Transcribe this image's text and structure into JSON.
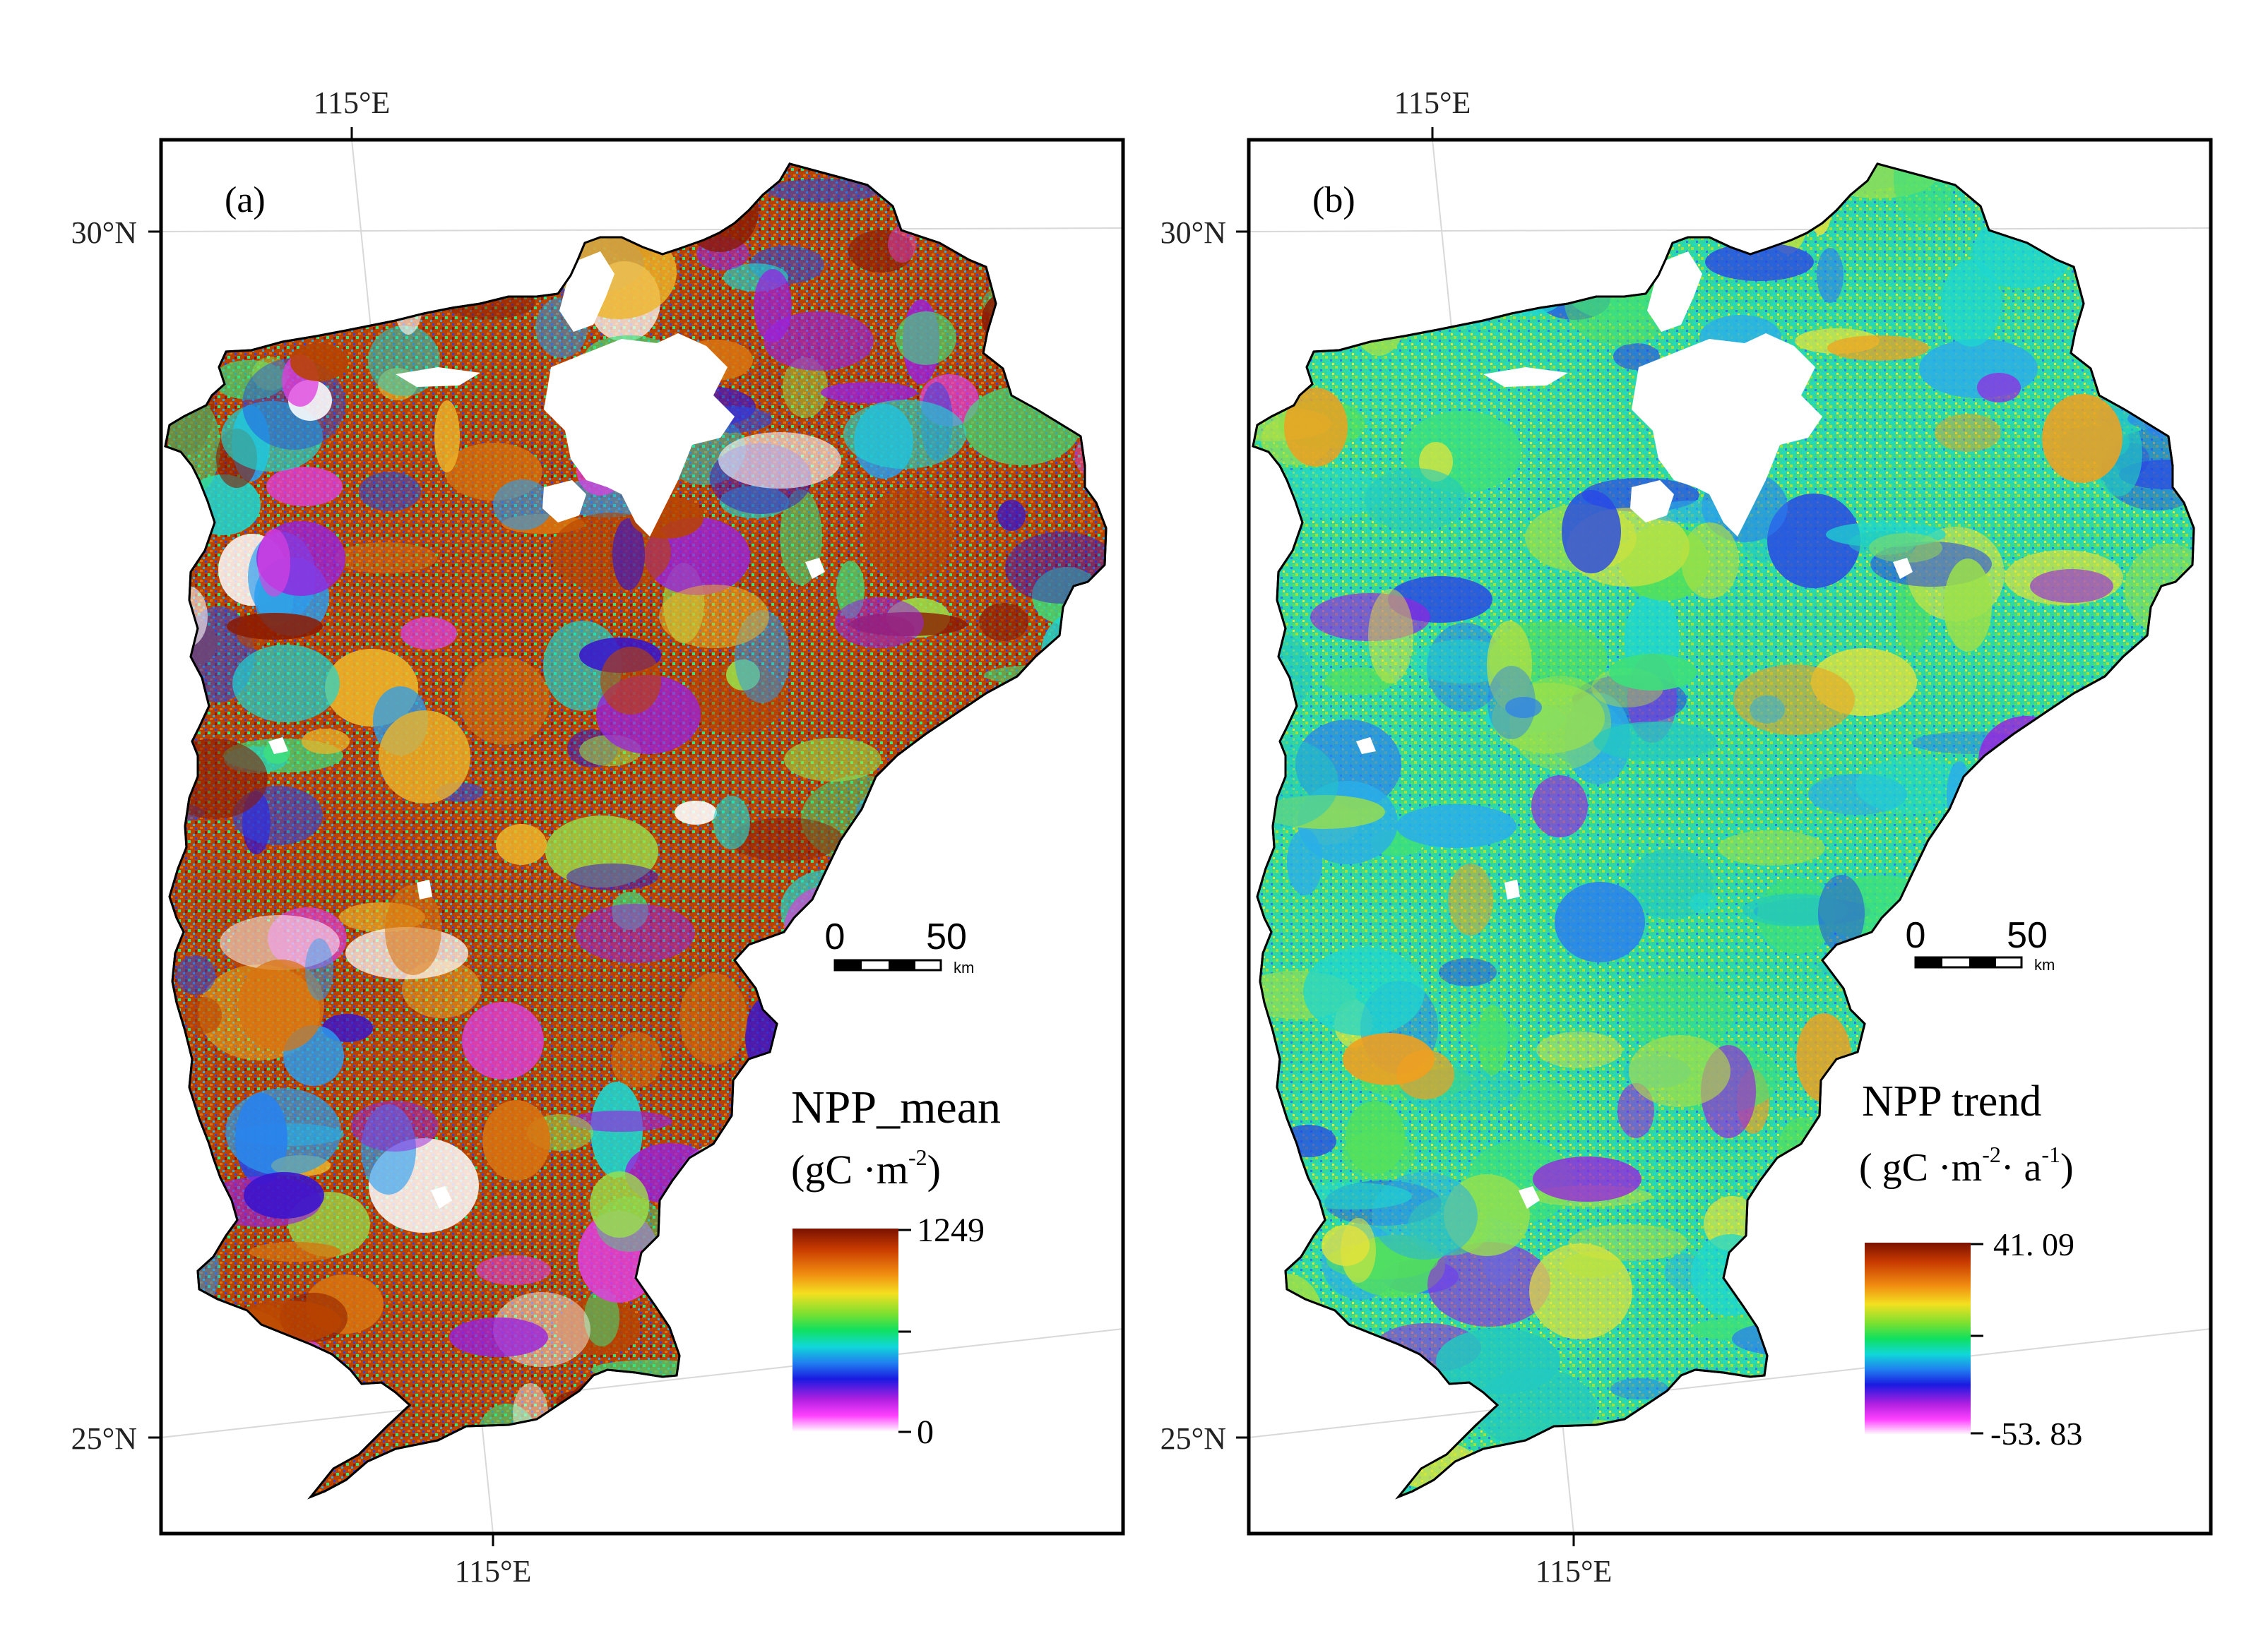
{
  "panels": [
    {
      "id": "a",
      "tag": "(a)",
      "top_lon_label": "115°E",
      "bottom_lon_label": "115°E",
      "lat_label_north": "30°N",
      "lat_label_south": "25°N",
      "scalebar": {
        "zero": "0",
        "fifty": "50",
        "unit": "km"
      },
      "legend": {
        "title": "NPP_mean",
        "unit_prefix": "(gC ·m",
        "unit_sup1": "-2",
        "unit_mid": "",
        "unit_sup2": "",
        "unit_suffix": ")",
        "max_label": "1249",
        "min_label": "0",
        "max": 1249,
        "min": 0
      },
      "colors": [
        "#8b1a00",
        "#b84300",
        "#d9730f",
        "#eeb52a",
        "#9be04a",
        "#3de07c",
        "#1ed7d0",
        "#2a9ef0",
        "#2946e6",
        "#3a14cc",
        "#9a20e0",
        "#e040e0",
        "#ffffff"
      ]
    },
    {
      "id": "b",
      "tag": "(b)",
      "top_lon_label": "115°E",
      "bottom_lon_label": "115°E",
      "lat_label_north": "30°N",
      "lat_label_south": "25°N",
      "scalebar": {
        "zero": "0",
        "fifty": "50",
        "unit": "km"
      },
      "legend": {
        "title": "NPP trend",
        "unit_prefix": "( gC ·m",
        "unit_sup1": "-2",
        "unit_mid": "· a",
        "unit_sup2": "-1",
        "unit_suffix": ")",
        "max_label": "41. 09",
        "min_label": "-53. 83",
        "max": 41.09,
        "min": -53.83
      },
      "colors": [
        "#1ed7d0",
        "#3de07c",
        "#2aaee8",
        "#9be04a",
        "#2a7ef0",
        "#54e05a",
        "#e7e43a",
        "#2946e6",
        "#22c9c0",
        "#f0a020",
        "#9a20e0",
        "#b8e040"
      ]
    }
  ]
}
